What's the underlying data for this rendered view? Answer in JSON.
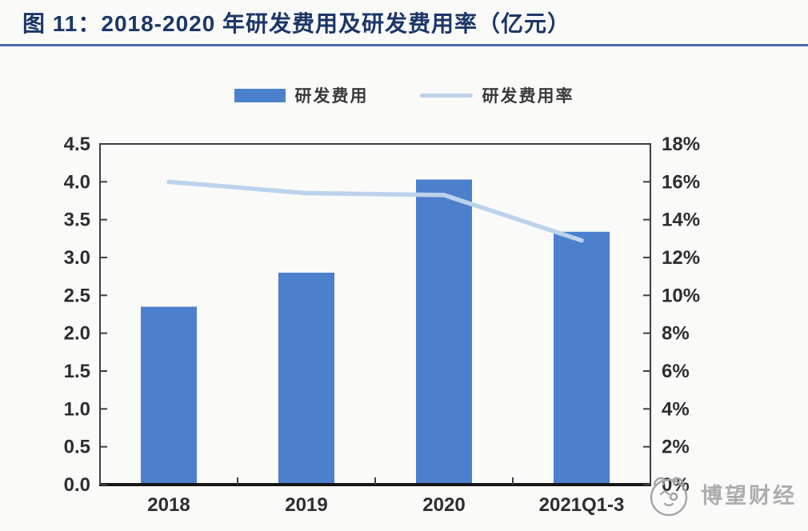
{
  "header": {
    "figure_title": "图 11：2018-2020 年研发费用及研发费用率（亿元）"
  },
  "legend": {
    "items": [
      {
        "label": "研发费用",
        "swatch": "bar-swatch",
        "color": "#4C80CD"
      },
      {
        "label": "研发费用率",
        "swatch": "line-swatch",
        "color": "#BDD2EC"
      }
    ]
  },
  "watermark": {
    "logo_icon": "panda-logo-icon",
    "text": "博望财经"
  },
  "colors": {
    "bar": "#4C80CD",
    "line": "#BDD2EC",
    "title": "#1C3667",
    "underline": "#4C69B1",
    "axis_line": "#3F3F3F",
    "bottom_axis_line": "#161616",
    "axis_label": "#2E2E2E",
    "watermark": "#A9A9A9",
    "background": "#FAFAF9"
  },
  "chart_data": {
    "type": "combo-bar-line",
    "title": "图 11：2018-2020 年研发费用及研发费用率（亿元）",
    "categories": [
      "2018",
      "2019",
      "2020",
      "2021Q1-3"
    ],
    "series": [
      {
        "name": "研发费用",
        "chart": "bar",
        "axis": "left",
        "values": [
          2.35,
          2.8,
          4.03,
          3.34
        ]
      },
      {
        "name": "研发费用率",
        "chart": "line",
        "axis": "right",
        "values": [
          16.0,
          15.4,
          15.3,
          12.9
        ],
        "unit": "%"
      }
    ],
    "left_axis": {
      "min": 0.0,
      "max": 4.5,
      "step": 0.5,
      "tick_labels": [
        "4.5",
        "4.0",
        "3.5",
        "3.0",
        "2.5",
        "2.0",
        "1.5",
        "1.0",
        "0.5",
        "0.0"
      ]
    },
    "right_axis": {
      "min": 0,
      "max": 18,
      "step": 2,
      "tick_labels": [
        "18%",
        "16%",
        "14%",
        "12%",
        "10%",
        "8%",
        "6%",
        "4%",
        "2%",
        "0%"
      ]
    },
    "grid": false,
    "legend_position": "top-center"
  }
}
